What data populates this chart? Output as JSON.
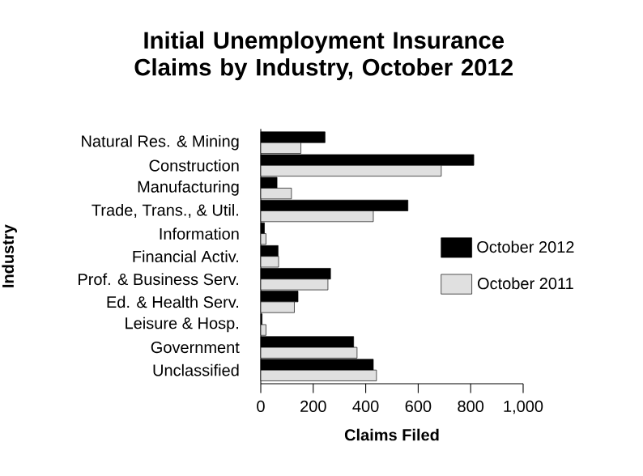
{
  "chart_data": {
    "type": "bar",
    "orientation": "horizontal",
    "title": "Initial Unemployment Insurance Claims by Industry, October 2012",
    "xlabel": "Claims Filed",
    "ylabel": "Industry",
    "categories": [
      "Natural Res. & Mining",
      "Construction",
      "Manufacturing",
      "Trade, Trans., & Util.",
      "Information",
      "Financial Activ.",
      "Prof. & Business Serv.",
      "Ed. & Health Serv.",
      "Leisure & Hosp.",
      "Government",
      "Unclassified"
    ],
    "series": [
      {
        "name": "October 2012",
        "color": "#000000",
        "values": [
          245,
          812,
          62,
          561,
          14,
          66,
          266,
          142,
          5,
          354,
          429
        ]
      },
      {
        "name": "October 2011",
        "color": "#e0e0e0",
        "values": [
          153,
          688,
          117,
          429,
          20,
          68,
          256,
          128,
          20,
          367,
          441
        ]
      }
    ],
    "xlim": [
      0,
      1000
    ],
    "xticks": [
      0,
      200,
      400,
      600,
      800,
      {
        "value": 1000,
        "label": "1,000"
      }
    ],
    "legend": "right",
    "grid": false
  }
}
